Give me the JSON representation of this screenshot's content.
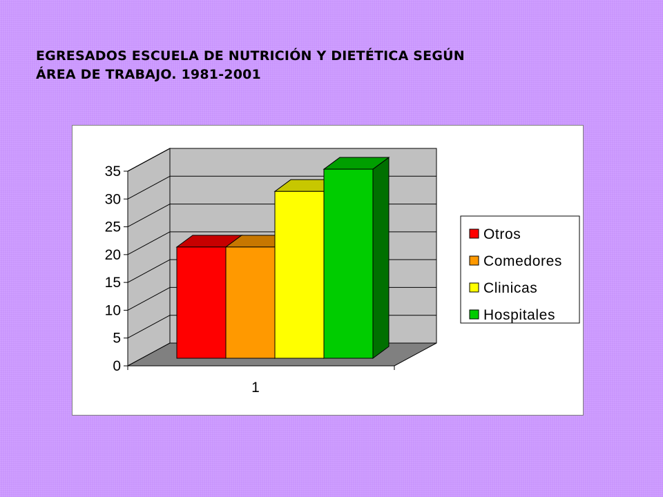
{
  "slide": {
    "title_line1": "EGRESADOS ESCUELA DE NUTRICIÓN Y DIETÉTICA SEGÚN",
    "title_line2": "ÁREA DE TRABAJO. 1981-2001",
    "background_color": "#cc99ff"
  },
  "chart_data": {
    "type": "bar",
    "style": "3d-clustered-column",
    "categories": [
      "1"
    ],
    "series": [
      {
        "name": "Otros",
        "values": [
          20
        ],
        "color": "#ff0000"
      },
      {
        "name": "Comedores",
        "values": [
          20
        ],
        "color": "#ff9900"
      },
      {
        "name": "Clinicas",
        "values": [
          30
        ],
        "color": "#ffff00"
      },
      {
        "name": "Hospitales",
        "values": [
          34
        ],
        "color": "#00cc00"
      }
    ],
    "ylim": [
      0,
      35
    ],
    "yticks": [
      0,
      5,
      10,
      15,
      20,
      25,
      30,
      35
    ],
    "grid": true,
    "legend": "right",
    "wall_color": "#c0c0c0",
    "floor_color": "#808080"
  }
}
